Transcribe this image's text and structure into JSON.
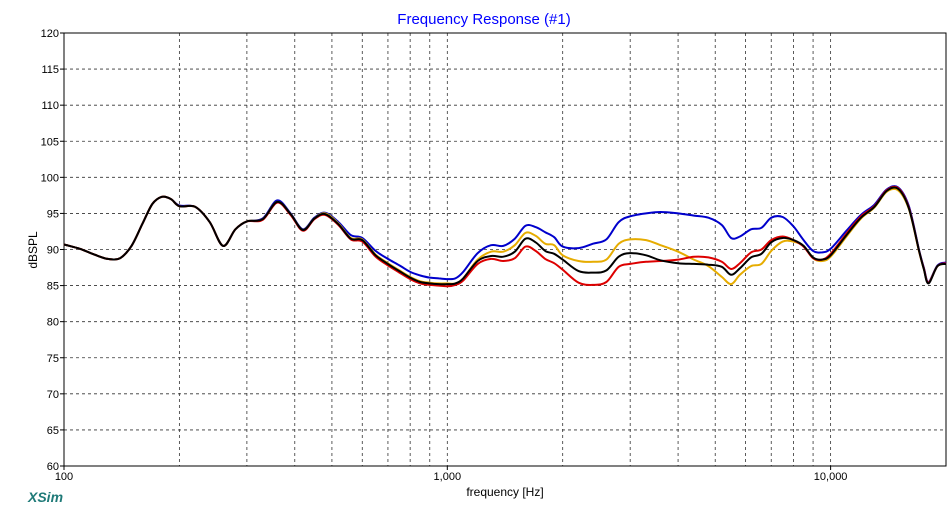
{
  "app": {
    "brand": "XSim"
  },
  "chart_data": {
    "type": "line",
    "title": "Frequency Response (#1)",
    "xlabel": "frequency [Hz]",
    "ylabel": "dBSPL",
    "xscale": "log",
    "xlim": [
      100,
      20000
    ],
    "ylim": [
      60,
      120
    ],
    "grid": true,
    "x_tick_labels": [
      "100",
      "1,000",
      "10,000"
    ],
    "x_tick_values": [
      100,
      1000,
      10000
    ],
    "y_ticks": [
      60,
      65,
      70,
      75,
      80,
      85,
      90,
      95,
      100,
      105,
      110,
      115,
      120
    ],
    "x": [
      100,
      110,
      120,
      130,
      140,
      150,
      160,
      170,
      180,
      190,
      200,
      220,
      240,
      260,
      280,
      300,
      330,
      360,
      390,
      420,
      450,
      480,
      520,
      560,
      600,
      650,
      700,
      750,
      800,
      850,
      900,
      950,
      1000,
      1050,
      1100,
      1200,
      1300,
      1400,
      1500,
      1600,
      1700,
      1800,
      1900,
      2000,
      2200,
      2400,
      2600,
      2800,
      3000,
      3300,
      3600,
      4000,
      4400,
      4800,
      5200,
      5500,
      5800,
      6200,
      6600,
      7000,
      7500,
      8000,
      8500,
      9000,
      9500,
      10000,
      11000,
      12000,
      13000,
      14000,
      15000,
      16000,
      17000,
      17500,
      18000,
      19000,
      20000
    ],
    "series": [
      {
        "color": "#0000cc",
        "values": [
          90.7,
          90.1,
          89.3,
          88.7,
          88.8,
          90.5,
          93.5,
          96.3,
          97.3,
          97.0,
          96.1,
          95.9,
          93.8,
          90.5,
          92.8,
          93.9,
          94.3,
          96.8,
          95.0,
          92.8,
          94.4,
          95.1,
          93.8,
          92.0,
          91.6,
          89.8,
          88.7,
          87.8,
          86.9,
          86.4,
          86.1,
          86.0,
          85.9,
          86.0,
          86.9,
          89.5,
          90.6,
          90.5,
          91.5,
          93.3,
          93.1,
          92.4,
          91.7,
          90.4,
          90.2,
          90.8,
          91.4,
          93.8,
          94.6,
          95.0,
          95.2,
          95.0,
          94.7,
          94.4,
          93.4,
          91.6,
          91.8,
          92.8,
          93.0,
          94.4,
          94.5,
          93.2,
          91.3,
          89.8,
          89.6,
          90.1,
          92.6,
          94.8,
          96.2,
          98.3,
          98.6,
          96.0,
          90.0,
          87.5,
          85.5,
          87.8,
          88.2
        ]
      },
      {
        "color": "#e6ac00",
        "values": [
          90.7,
          90.1,
          89.3,
          88.7,
          88.8,
          90.5,
          93.5,
          96.3,
          97.3,
          97.0,
          96.0,
          95.9,
          93.8,
          90.5,
          92.8,
          93.9,
          94.2,
          96.6,
          94.9,
          92.7,
          94.3,
          95.0,
          93.6,
          91.6,
          91.4,
          89.3,
          88.1,
          87.1,
          86.2,
          85.6,
          85.4,
          85.3,
          85.3,
          85.3,
          86.0,
          88.6,
          89.7,
          89.7,
          90.6,
          92.3,
          91.9,
          90.8,
          90.6,
          89.2,
          88.4,
          88.3,
          88.6,
          90.8,
          91.4,
          91.3,
          90.6,
          89.7,
          88.6,
          87.7,
          86.2,
          85.2,
          86.5,
          87.7,
          88.0,
          89.8,
          91.1,
          91.1,
          90.5,
          88.8,
          88.4,
          89.0,
          91.8,
          94.3,
          95.8,
          98.0,
          98.2,
          95.6,
          89.8,
          87.3,
          85.4,
          87.7,
          88.0
        ]
      },
      {
        "color": "#dd0000",
        "values": [
          90.7,
          90.1,
          89.3,
          88.7,
          88.8,
          90.5,
          93.5,
          96.3,
          97.3,
          97.0,
          96.0,
          95.9,
          93.8,
          90.5,
          92.8,
          93.9,
          94.1,
          96.5,
          94.8,
          92.6,
          94.2,
          94.8,
          93.4,
          91.4,
          91.1,
          89.0,
          87.8,
          86.8,
          85.9,
          85.3,
          85.1,
          85.0,
          84.9,
          85.1,
          85.7,
          88.0,
          88.7,
          88.4,
          88.8,
          90.4,
          89.8,
          88.7,
          88.1,
          87.2,
          85.4,
          85.1,
          85.5,
          87.6,
          88.0,
          88.3,
          88.4,
          88.6,
          89.0,
          88.9,
          88.3,
          87.3,
          88.1,
          89.6,
          90.0,
          91.3,
          91.8,
          91.3,
          90.4,
          88.8,
          88.6,
          89.4,
          92.2,
          94.6,
          96.0,
          98.2,
          98.5,
          95.8,
          89.9,
          87.4,
          85.4,
          87.7,
          88.1
        ]
      },
      {
        "color": "#000000",
        "values": [
          90.7,
          90.1,
          89.3,
          88.7,
          88.8,
          90.5,
          93.5,
          96.3,
          97.3,
          97.0,
          96.0,
          95.9,
          93.8,
          90.5,
          92.8,
          93.9,
          94.2,
          96.6,
          94.9,
          92.7,
          94.3,
          94.9,
          93.5,
          91.5,
          91.3,
          89.2,
          88.0,
          87.0,
          86.1,
          85.5,
          85.3,
          85.2,
          85.2,
          85.3,
          86.0,
          88.4,
          89.1,
          89.0,
          89.7,
          91.5,
          91.0,
          89.8,
          89.4,
          88.6,
          87.0,
          86.8,
          87.1,
          89.0,
          89.5,
          89.2,
          88.5,
          88.1,
          88.0,
          87.9,
          87.6,
          86.5,
          87.4,
          88.9,
          89.4,
          91.0,
          91.6,
          91.3,
          90.5,
          88.9,
          88.6,
          89.2,
          92.0,
          94.4,
          95.9,
          98.1,
          98.4,
          95.7,
          89.9,
          87.3,
          85.3,
          87.7,
          88.0
        ]
      }
    ]
  }
}
